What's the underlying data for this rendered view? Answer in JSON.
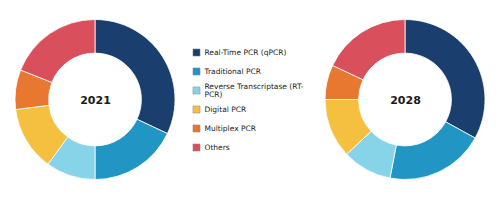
{
  "chart_data": [
    {
      "type": "donut",
      "title": "2021",
      "categories": [
        "Real-Time PCR (qPCR)",
        "Traditional PCR",
        "Reverse Transcriptase (RT-\nPCR)",
        "Digital PCR",
        "Multiplex PCR",
        "Others"
      ],
      "values": [
        32,
        18,
        10,
        13,
        8,
        19
      ],
      "colors": [
        "#1a3f6f",
        "#2196c4",
        "#87d4e8",
        "#f5c040",
        "#e87830",
        "#d94f5c"
      ]
    },
    {
      "type": "donut",
      "title": "2028",
      "categories": [
        "Real-Time PCR (qPCR)",
        "Traditional PCR",
        "Reverse Transcriptase (RT-\nPCR)",
        "Digital PCR",
        "Multiplex PCR",
        "Others"
      ],
      "values": [
        33,
        20,
        10,
        12,
        7,
        18
      ],
      "colors": [
        "#1a3f6f",
        "#2196c4",
        "#87d4e8",
        "#f5c040",
        "#e87830",
        "#d94f5c"
      ]
    }
  ]
}
